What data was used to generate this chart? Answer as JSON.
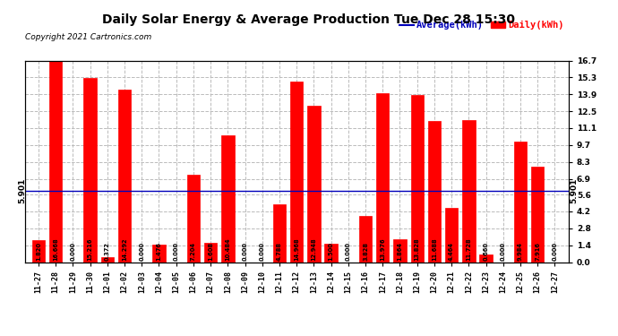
{
  "title": "Daily Solar Energy & Average Production Tue Dec 28 15:30",
  "copyright": "Copyright 2021 Cartronics.com",
  "legend_average": "Average(kWh)",
  "legend_daily": "Daily(kWh)",
  "average_value": 5.901,
  "bar_color": "#ff0000",
  "average_line_color": "#0000bb",
  "background_color": "#ffffff",
  "grid_color": "#bbbbbb",
  "categories": [
    "11-27",
    "11-28",
    "11-29",
    "11-30",
    "12-01",
    "12-02",
    "12-03",
    "12-04",
    "12-05",
    "12-06",
    "12-07",
    "12-08",
    "12-09",
    "12-10",
    "12-11",
    "12-12",
    "12-13",
    "12-14",
    "12-15",
    "12-16",
    "12-17",
    "12-18",
    "12-19",
    "12-20",
    "12-21",
    "12-22",
    "12-23",
    "12-24",
    "12-25",
    "12-26",
    "12-27"
  ],
  "values": [
    1.82,
    16.668,
    0.0,
    15.216,
    0.372,
    14.292,
    0.0,
    1.476,
    0.0,
    7.204,
    1.608,
    10.484,
    0.0,
    0.0,
    4.788,
    14.968,
    12.948,
    1.5,
    0.0,
    3.828,
    13.976,
    1.864,
    13.828,
    11.688,
    4.464,
    11.728,
    0.66,
    0.0,
    9.984,
    7.916,
    0.0
  ],
  "ylim": [
    0.0,
    16.7
  ],
  "yticks": [
    0.0,
    1.4,
    2.8,
    4.2,
    5.6,
    6.9,
    8.3,
    9.7,
    11.1,
    12.5,
    13.9,
    15.3,
    16.7
  ],
  "ytick_labels_right": [
    "0.0",
    "1.4",
    "2.8",
    "4.2",
    "5.6",
    "6.9",
    "8.3",
    "9.7",
    "11.1",
    "12.5",
    "13.9",
    "15.3",
    "16.7"
  ]
}
